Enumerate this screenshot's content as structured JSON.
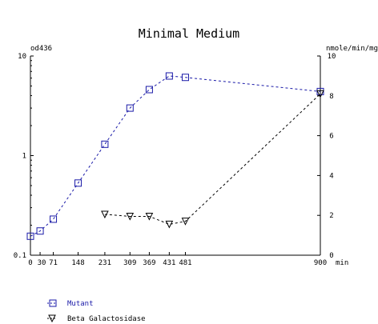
{
  "chart_data": {
    "type": "line",
    "title": "Minimal Medium",
    "xlabel": "min",
    "x_ticks": [
      0,
      30,
      71,
      148,
      231,
      309,
      369,
      431,
      481,
      900
    ],
    "y_left": {
      "label": "od436",
      "scale": "log",
      "range": [
        0.1,
        10
      ],
      "ticks": [
        "0.1",
        "1",
        "10"
      ]
    },
    "y_right": {
      "label": "nmole/min/mg",
      "range": [
        0,
        10
      ],
      "ticks": [
        "0",
        "2",
        "4",
        "6",
        "8",
        "10"
      ]
    },
    "series": [
      {
        "name": "Mutant",
        "axis": "left",
        "marker": "square",
        "color": "#1a1aa8",
        "x": [
          0,
          30,
          71,
          148,
          231,
          309,
          369,
          431,
          481,
          900
        ],
        "y": [
          0.155,
          0.175,
          0.23,
          0.53,
          1.3,
          3.0,
          4.6,
          6.3,
          6.1,
          4.4
        ]
      },
      {
        "name": "Beta Galactosidase",
        "axis": "right",
        "marker": "triangle-down",
        "color": "#000000",
        "x": [
          231,
          309,
          369,
          431,
          481,
          900
        ],
        "y": [
          2.05,
          1.95,
          1.95,
          1.55,
          1.7,
          8.1
        ]
      }
    ],
    "grid": false,
    "legend": "bottom-left"
  }
}
